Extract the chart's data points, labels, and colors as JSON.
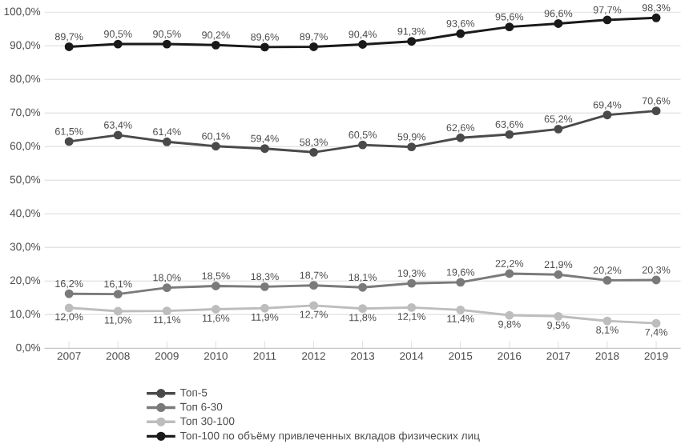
{
  "chart_data": {
    "type": "line",
    "categories": [
      "2007",
      "2008",
      "2009",
      "2010",
      "2011",
      "2012",
      "2013",
      "2014",
      "2015",
      "2016",
      "2017",
      "2018",
      "2019"
    ],
    "ylim": [
      0,
      100
    ],
    "yticks": [
      {
        "value": 0,
        "label": "0,0%"
      },
      {
        "value": 10,
        "label": "10,0%"
      },
      {
        "value": 20,
        "label": "20,0%"
      },
      {
        "value": 30,
        "label": "30,0%"
      },
      {
        "value": 40,
        "label": "40,0%"
      },
      {
        "value": 50,
        "label": "50,0%"
      },
      {
        "value": 60,
        "label": "60,0%"
      },
      {
        "value": 70,
        "label": "70,0%"
      },
      {
        "value": 80,
        "label": "80,0%"
      },
      {
        "value": 90,
        "label": "90,0%"
      },
      {
        "value": 100,
        "label": "100,0%"
      }
    ],
    "grid": "y",
    "legend": "bottom",
    "marker": "circle",
    "line_style": "solid",
    "series": [
      {
        "name": "Топ-5",
        "color": "#4a4a4a",
        "values": [
          61.5,
          63.4,
          61.4,
          60.1,
          59.4,
          58.3,
          60.5,
          59.9,
          62.6,
          63.6,
          65.2,
          69.4,
          70.6
        ],
        "value_labels": [
          "61,5%",
          "63,4%",
          "61,4%",
          "60,1%",
          "59,4%",
          "58,3%",
          "60,5%",
          "59,9%",
          "62,6%",
          "63,6%",
          "65,2%",
          "69,4%",
          "70,6%"
        ]
      },
      {
        "name": "Топ 6-30",
        "color": "#7a7a7a",
        "values": [
          16.2,
          16.1,
          18.0,
          18.5,
          18.3,
          18.7,
          18.1,
          19.3,
          19.6,
          22.2,
          21.9,
          20.2,
          20.3
        ],
        "value_labels": [
          "16,2%",
          "16,1%",
          "18,0%",
          "18,5%",
          "18,3%",
          "18,7%",
          "18,1%",
          "19,3%",
          "19,6%",
          "22,2%",
          "21,9%",
          "20,2%",
          "20,3%"
        ]
      },
      {
        "name": "Топ 30-100",
        "color": "#bdbdbd",
        "values": [
          12.0,
          11.0,
          11.1,
          11.6,
          11.9,
          12.7,
          11.8,
          12.1,
          11.4,
          9.8,
          9.5,
          8.1,
          7.4
        ],
        "value_labels": [
          "12,0%",
          "11,0%",
          "11,1%",
          "11,6%",
          "11,9%",
          "12,7%",
          "11,8%",
          "12,1%",
          "11,4%",
          "9,8%",
          "9,5%",
          "8,1%",
          "7,4%"
        ]
      },
      {
        "name": "Топ-100 по объёму привлеченных вкладов физических лиц",
        "color": "#1a1a1a",
        "values": [
          89.7,
          90.5,
          90.5,
          90.2,
          89.6,
          89.7,
          90.4,
          91.3,
          93.6,
          95.6,
          96.6,
          97.7,
          98.3
        ],
        "value_labels": [
          "89,7%",
          "90,5%",
          "90,5%",
          "90,2%",
          "89,6%",
          "89,7%",
          "90,4%",
          "91,3%",
          "93,6%",
          "95,6%",
          "96,6%",
          "97,7%",
          "98,3%"
        ]
      }
    ]
  }
}
